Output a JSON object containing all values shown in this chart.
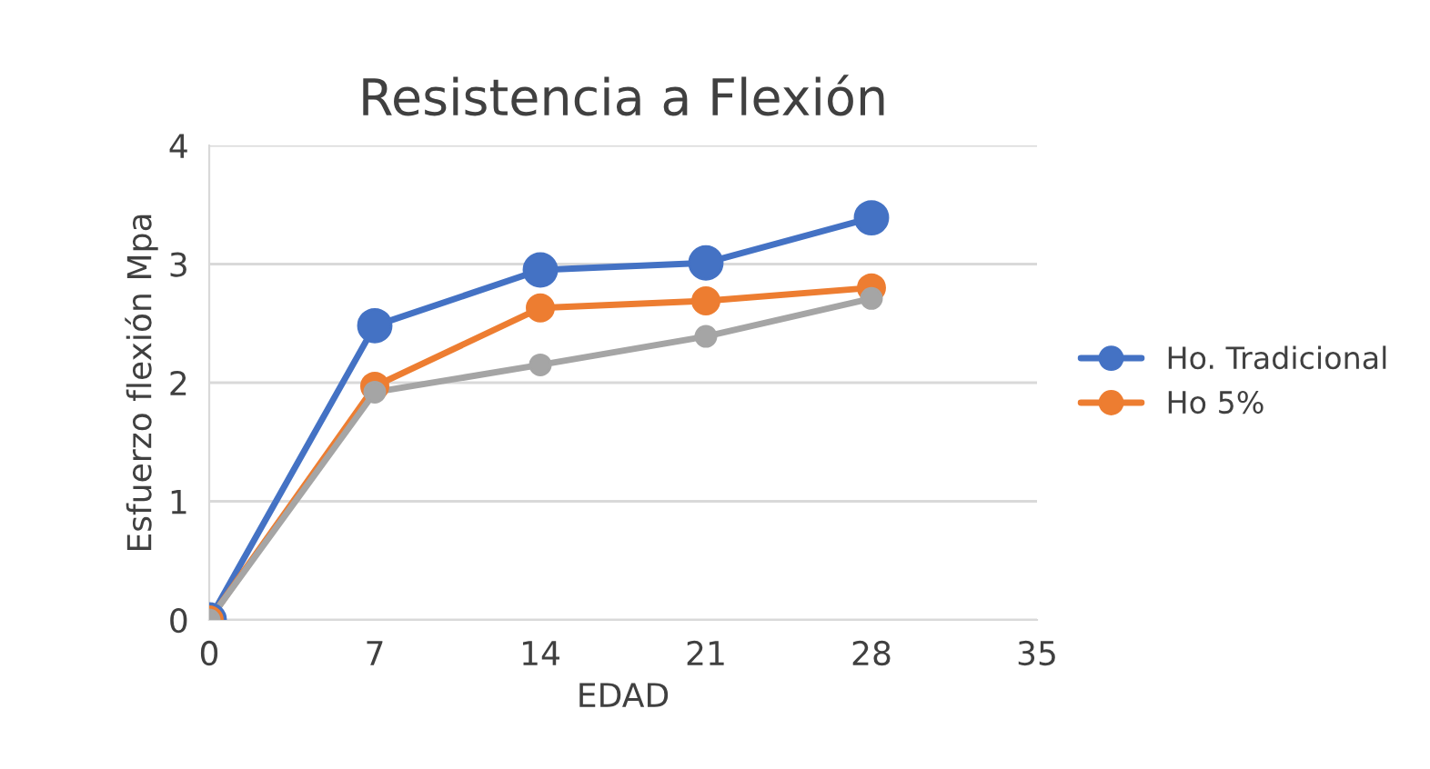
{
  "chart_data": {
    "type": "line",
    "title": "Resistencia a Flexión",
    "xlabel": "EDAD",
    "ylabel": "Esfuerzo flexión Mpa",
    "x": [
      0,
      7,
      14,
      21,
      28
    ],
    "series": [
      {
        "name": "Ho. Tradicional",
        "color": "#4472c4",
        "values": [
          0,
          2.48,
          2.95,
          3.01,
          3.39
        ]
      },
      {
        "name": "Ho 5%",
        "color": "#ed7d31",
        "values": [
          0,
          1.97,
          2.63,
          2.69,
          2.8
        ]
      },
      {
        "color": "#a5a5a5",
        "values": [
          0,
          1.92,
          2.15,
          2.39,
          2.71
        ]
      }
    ],
    "xlim": [
      0,
      35
    ],
    "xticks": [
      0,
      7,
      14,
      21,
      28,
      35
    ],
    "ylim": [
      0,
      4
    ],
    "yticks": [
      0,
      1,
      2,
      3,
      4
    ],
    "grid": "y",
    "legend": "right",
    "marker": "circle",
    "line_style": "solid"
  }
}
